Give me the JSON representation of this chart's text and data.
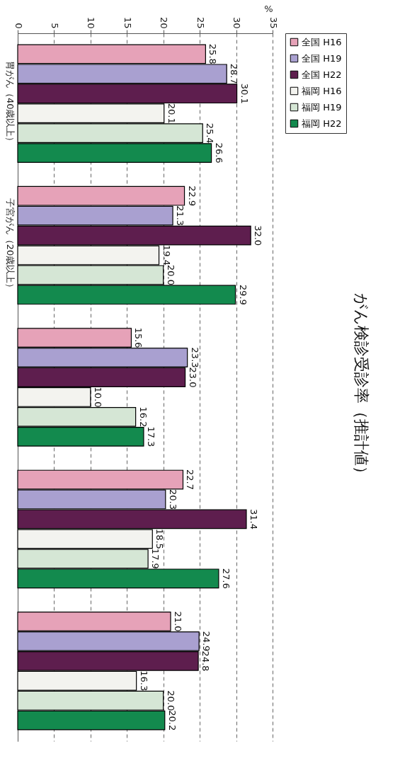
{
  "chart_data": {
    "type": "bar",
    "orientation": "horizontal",
    "title": "がん検診受診率（推計値）",
    "xlabel": "%",
    "categories": [
      "胃がん（40歳以上）",
      "子宮がん（20歳以上）",
      null,
      null,
      null
    ],
    "series": [
      {
        "name": "全国 H16",
        "color": "#e6a2b8",
        "values": [
          25.8,
          22.9,
          15.6,
          22.7,
          21.0
        ],
        "value_labels": [
          "25.8",
          "22.9",
          "15.6",
          "22.7",
          "21.0"
        ]
      },
      {
        "name": "全国 H19",
        "color": "#a9a0d0",
        "values": [
          28.7,
          21.3,
          23.3,
          20.3,
          24.9
        ],
        "value_labels": [
          "28.7",
          "21.3",
          "23.3",
          "20.3",
          "24.9"
        ]
      },
      {
        "name": "全国 H22",
        "color": "#5e1e4e",
        "values": [
          30.1,
          32.0,
          23.0,
          31.4,
          24.8
        ],
        "value_labels": [
          "30.1",
          "32.0",
          "23.0",
          "31.4",
          "24.8"
        ]
      },
      {
        "name": "福岡 H16",
        "color": "#f3f3ef",
        "values": [
          20.1,
          19.4,
          10.0,
          18.5,
          16.3
        ],
        "value_labels": [
          "20.1",
          "19.4",
          "10.0",
          "18.5",
          "16.3"
        ]
      },
      {
        "name": "福岡 H19",
        "color": "#d5e6d5",
        "values": [
          25.4,
          20.0,
          16.2,
          17.9,
          20.0
        ],
        "value_labels": [
          "25.4",
          "20.0",
          "16.2",
          "17.9",
          "20.0"
        ]
      },
      {
        "name": "福岡 H22",
        "color": "#138a4e",
        "values": [
          26.6,
          29.9,
          17.3,
          27.6,
          20.2
        ],
        "value_labels": [
          "26.6",
          "29.9",
          "17.3",
          "27.6",
          "20.2"
        ]
      }
    ],
    "xlim": [
      0,
      35
    ],
    "xticks": [
      0,
      5,
      10,
      15,
      20,
      25,
      30,
      35
    ],
    "grid": "x",
    "legend": "right"
  }
}
